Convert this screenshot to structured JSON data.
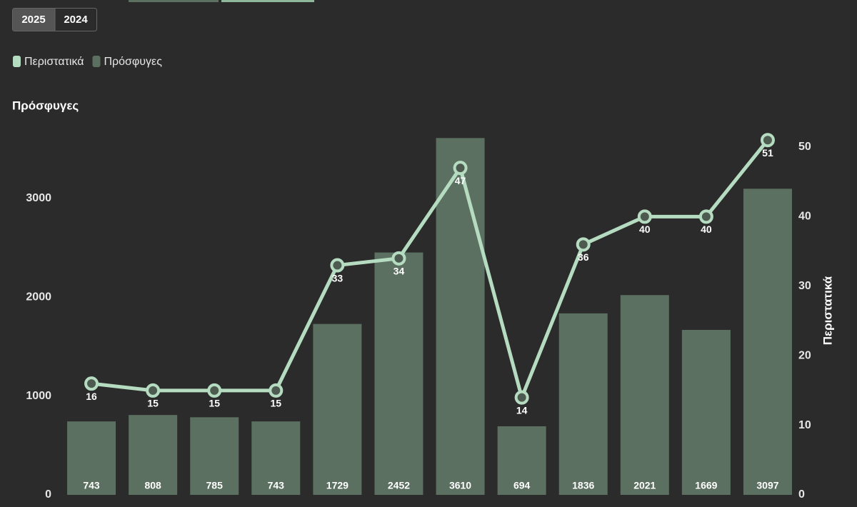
{
  "tabs": [
    "2025",
    "2024"
  ],
  "chart_data": {
    "type": "bar",
    "y_label": "Πρόσφυγες",
    "y2_label": "Περιστατικά",
    "categories": [
      null,
      null,
      null,
      null,
      null,
      null,
      null,
      null,
      null,
      null,
      null,
      null
    ],
    "series": [
      {
        "name": "Περιστατικά",
        "type": "line",
        "axis": "y2",
        "color": "#b5dcc0",
        "values": [
          16,
          15,
          15,
          15,
          33,
          34,
          47,
          14,
          36,
          40,
          40,
          51
        ]
      },
      {
        "name": "Πρόσφυγες",
        "type": "bar",
        "color": "#5b7060",
        "values": [
          743,
          808,
          785,
          743,
          1729,
          2452,
          3610,
          694,
          1836,
          2021,
          1669,
          3097
        ]
      }
    ],
    "ylim": [
      0,
      3800
    ],
    "yticks": [
      0,
      1000,
      2000,
      3000
    ],
    "y2lim": [
      0,
      54
    ],
    "y2ticks": [
      0,
      10,
      20,
      30,
      40,
      50
    ],
    "grid": false
  }
}
